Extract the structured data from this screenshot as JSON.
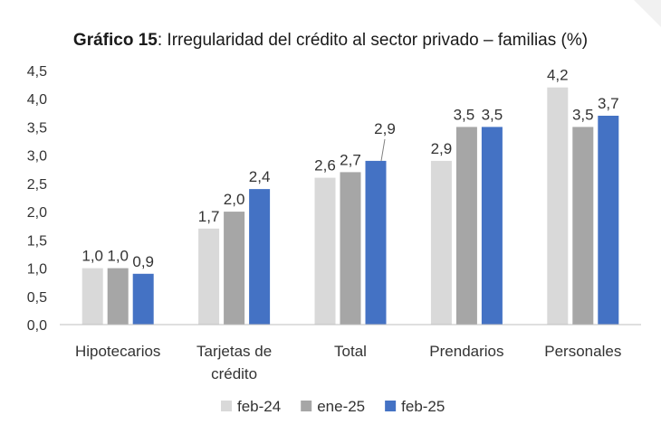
{
  "header": {
    "title_bold": "Gráfico 15",
    "title_rest": ": Irregularidad del crédito al sector privado – familias (%)"
  },
  "chart_data": {
    "type": "bar",
    "title": "Gráfico 15: Irregularidad del crédito al sector privado – familias (%)",
    "categories": [
      [
        "Hipotecarios"
      ],
      [
        "Tarjetas de",
        "crédito"
      ],
      [
        "Total"
      ],
      [
        "Prendarios"
      ],
      [
        "Personales"
      ]
    ],
    "series": [
      {
        "name": "feb-24",
        "color": "#d9d9d9",
        "values": [
          1.0,
          1.7,
          2.6,
          2.9,
          4.2
        ],
        "labels": [
          "1,0",
          "1,7",
          "2,6",
          "2,9",
          "4,2"
        ]
      },
      {
        "name": "ene-25",
        "color": "#a6a6a6",
        "values": [
          1.0,
          2.0,
          2.7,
          3.5,
          3.5
        ],
        "labels": [
          "1,0",
          "2,0",
          "2,7",
          "3,5",
          "3,5"
        ]
      },
      {
        "name": "feb-25",
        "color": "#4472c4",
        "values": [
          0.9,
          2.4,
          2.9,
          3.5,
          3.7
        ],
        "labels": [
          "0,9",
          "2,4",
          "2,9",
          "3,5",
          "3,7"
        ]
      }
    ],
    "ylim": [
      0,
      4.5
    ],
    "yticks": [
      0,
      0.5,
      1.0,
      1.5,
      2.0,
      2.5,
      3.0,
      3.5,
      4.0,
      4.5
    ],
    "ytick_labels": [
      "0,0",
      "0,5",
      "1,0",
      "1,5",
      "2,0",
      "2,5",
      "3,0",
      "3,5",
      "4,0",
      "4,5"
    ],
    "xlabel": "",
    "ylabel": "",
    "grid": false,
    "legend_position": "bottom"
  }
}
